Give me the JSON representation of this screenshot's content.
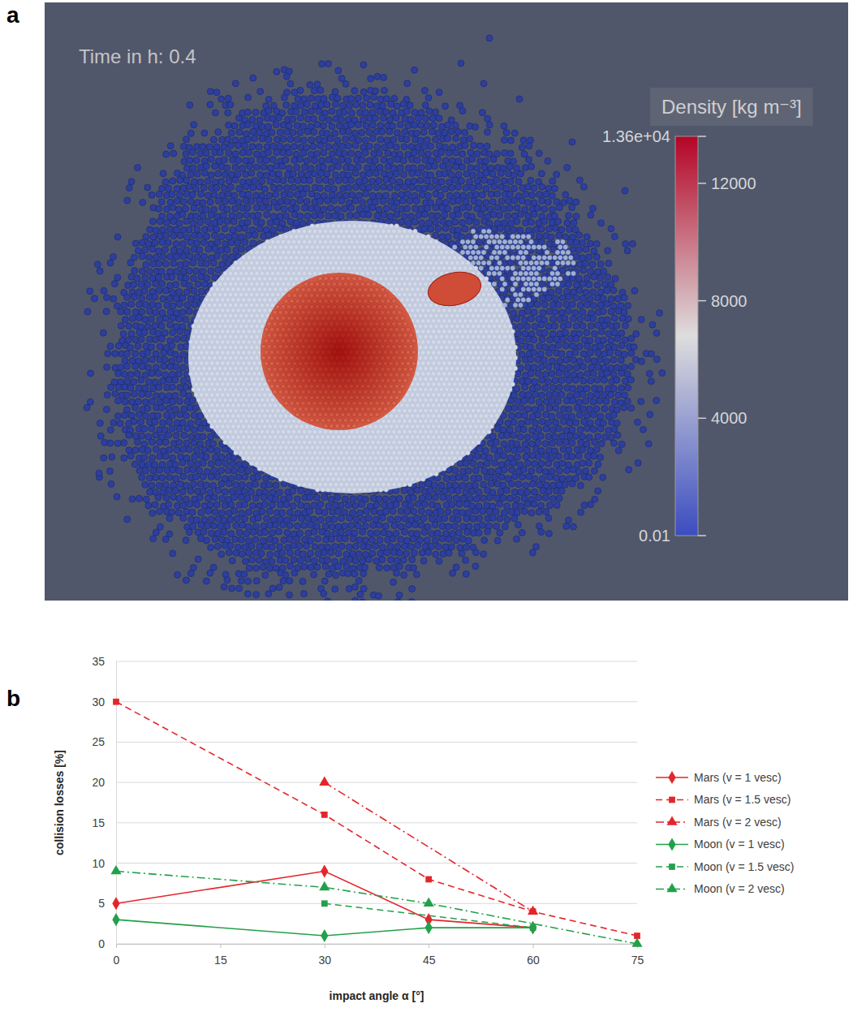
{
  "chart_data": [
    {
      "type": "image",
      "panel_label": "a",
      "annotation": "Time in h: 0.4",
      "colorbar": {
        "title": "Density [kg m⁻³]",
        "range": [
          0.01,
          13600
        ],
        "ticks": [
          {
            "value": 13600,
            "label": "1.36e+04"
          },
          12000,
          8000,
          4000,
          0.01
        ]
      }
    },
    {
      "type": "line",
      "panel_label": "b",
      "x_label": "impact angle α [°]",
      "y_label": "collision losses [%]",
      "xlim": [
        0,
        75
      ],
      "xticks": [
        0,
        15,
        30,
        45,
        60,
        75
      ],
      "ylim": [
        0,
        35
      ],
      "yticks": [
        0,
        5,
        10,
        15,
        20,
        25,
        30,
        35
      ],
      "grid": true,
      "legend": "right",
      "series": [
        {
          "name": "Mars (v = 1 vesc)",
          "color": "#e3262b",
          "marker": "diamond",
          "line_style": "solid",
          "x": [
            0,
            30,
            45,
            60
          ],
          "values": [
            5,
            9,
            3,
            2
          ]
        },
        {
          "name": "Mars (v = 1.5 vesc)",
          "color": "#e3262b",
          "marker": "square",
          "line_style": "dashed",
          "x": [
            0,
            30,
            45,
            60,
            75
          ],
          "values": [
            30,
            16,
            8,
            4,
            1
          ]
        },
        {
          "name": "Mars (v = 2 vesc)",
          "color": "#e3262b",
          "marker": "triangle",
          "line_style": "dashdot",
          "x": [
            30,
            60
          ],
          "values": [
            20,
            4
          ]
        },
        {
          "name": "Moon (v = 1 vesc)",
          "color": "#23a04a",
          "marker": "diamond",
          "line_style": "solid",
          "x": [
            0,
            30,
            45,
            60
          ],
          "values": [
            3,
            1,
            2,
            2
          ]
        },
        {
          "name": "Moon (v = 1.5 vesc)",
          "color": "#23a04a",
          "marker": "square",
          "line_style": "dashed",
          "x": [
            30,
            60
          ],
          "values": [
            5,
            2
          ]
        },
        {
          "name": "Moon (v = 2 vesc)",
          "color": "#23a04a",
          "marker": "triangle",
          "line_style": "dashdot",
          "x": [
            0,
            30,
            45,
            75
          ],
          "values": [
            9,
            7,
            5,
            0
          ]
        }
      ]
    }
  ]
}
